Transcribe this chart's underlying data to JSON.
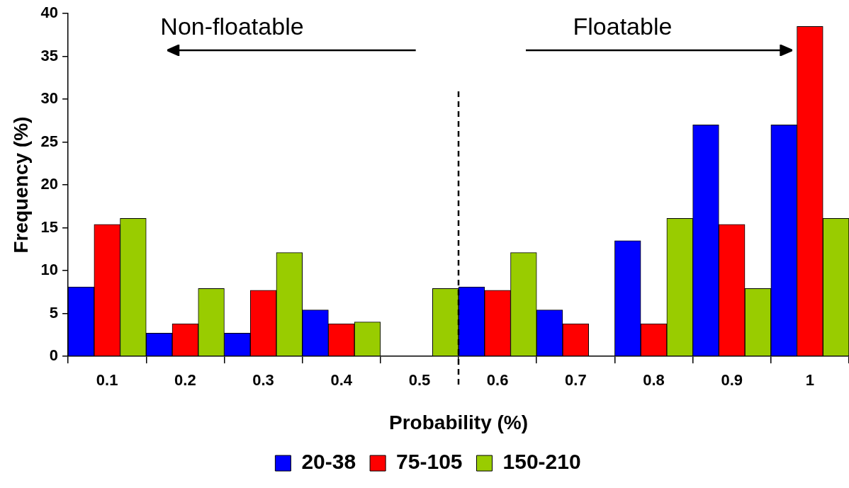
{
  "chart_data": {
    "type": "bar",
    "xlabel": "Probability (%)",
    "ylabel": "Frequency (%)",
    "categories": [
      "0.1",
      "0.2",
      "0.3",
      "0.4",
      "0.5",
      "0.6",
      "0.7",
      "0.8",
      "0.9",
      "1"
    ],
    "series": [
      {
        "name": "20-38",
        "color": "#0000ff",
        "values": [
          8.1,
          2.7,
          2.7,
          5.4,
          0,
          8.1,
          5.4,
          13.5,
          27,
          27
        ]
      },
      {
        "name": "75-105",
        "color": "#ff0000",
        "values": [
          15.4,
          3.8,
          7.7,
          3.8,
          0,
          7.7,
          3.8,
          3.8,
          15.4,
          38.5
        ]
      },
      {
        "name": "150-210",
        "color": "#99cc00",
        "values": [
          16.1,
          7.9,
          12.1,
          4.0,
          7.9,
          12.1,
          0,
          16.1,
          7.9,
          16.1
        ]
      }
    ],
    "ylim": [
      0,
      40
    ],
    "yticks": [
      0,
      5,
      10,
      15,
      20,
      25,
      30,
      35,
      40
    ],
    "grid": false,
    "legend": "bottom",
    "annotations": [
      "Non-floatable",
      "Floatable"
    ]
  }
}
